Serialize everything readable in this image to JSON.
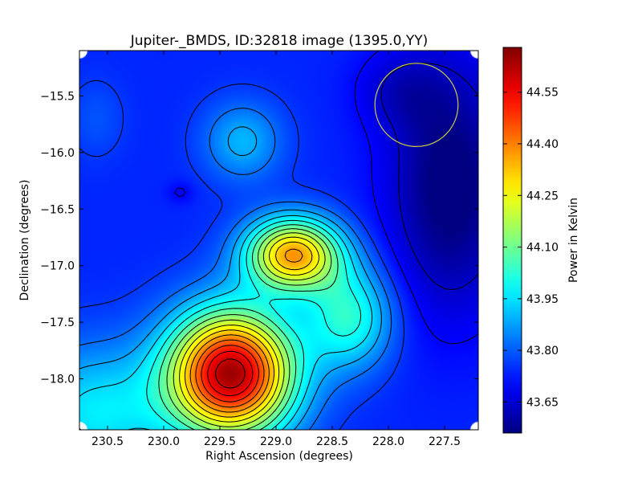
{
  "chart_data": {
    "type": "heatmap",
    "title": "Jupiter-_BMDS, ID:32818 image (1395.0,YY)",
    "xlabel": "Right Ascension (degrees)",
    "ylabel": "Declination (degrees)",
    "xlim": [
      230.75,
      227.2
    ],
    "ylim": [
      -18.45,
      -15.1
    ],
    "x_ticks": [
      230.5,
      230.0,
      229.5,
      229.0,
      228.5,
      228.0,
      227.5
    ],
    "x_tick_labels": [
      "230.5",
      "230.0",
      "229.5",
      "229.0",
      "228.5",
      "228.0",
      "227.5"
    ],
    "y_ticks": [
      -15.5,
      -16.0,
      -16.5,
      -17.0,
      -17.5,
      -18.0
    ],
    "y_tick_labels": [
      "−15.5",
      "−16.0",
      "−16.5",
      "−17.0",
      "−17.5",
      "−18.0"
    ],
    "colorbar": {
      "label": "Power in Kelvin",
      "range": [
        43.56,
        44.68
      ],
      "ticks": [
        43.65,
        43.8,
        43.95,
        44.1,
        44.25,
        44.4,
        44.55
      ],
      "tick_labels": [
        "43.65",
        "43.80",
        "43.95",
        "44.10",
        "44.25",
        "44.40",
        "44.55"
      ],
      "colormap": "jet"
    },
    "contour_levels": [
      43.64,
      43.7,
      43.76,
      43.82,
      43.88,
      43.94,
      44.0,
      44.06,
      44.12,
      44.18,
      44.24,
      44.3,
      44.36,
      44.42,
      44.48,
      44.54,
      44.6
    ],
    "peaks": [
      {
        "ra": 229.4,
        "dec": -17.9,
        "value": 44.66
      },
      {
        "ra": 228.82,
        "dec": -16.88,
        "value": 44.46
      },
      {
        "ra": 227.5,
        "dec": -16.55,
        "value": 43.59
      }
    ],
    "beam_circle": {
      "ra": 227.75,
      "dec": -15.58,
      "radius_deg": 0.37,
      "color": "#cccc44"
    },
    "grid": false,
    "legend": "none"
  }
}
